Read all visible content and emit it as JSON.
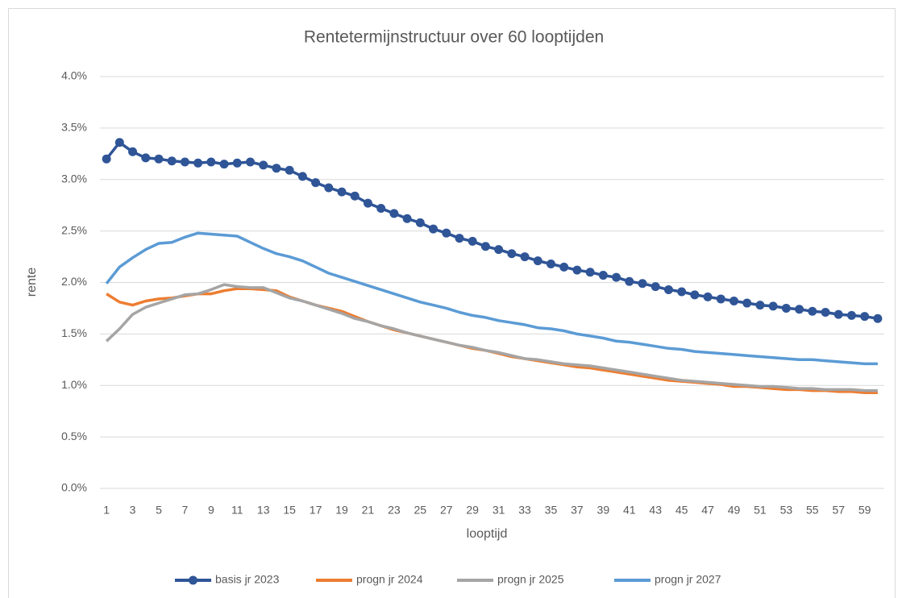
{
  "chart_data": {
    "type": "line",
    "title": "Rentetermijnstructuur over 60 looptijden",
    "x_label": "looptijd",
    "y_label": "rente",
    "x": [
      1,
      2,
      3,
      4,
      5,
      6,
      7,
      8,
      9,
      10,
      11,
      12,
      13,
      14,
      15,
      16,
      17,
      18,
      19,
      20,
      21,
      22,
      23,
      24,
      25,
      26,
      27,
      28,
      29,
      30,
      31,
      32,
      33,
      34,
      35,
      36,
      37,
      38,
      39,
      40,
      41,
      42,
      43,
      44,
      45,
      46,
      47,
      48,
      49,
      50,
      51,
      52,
      53,
      54,
      55,
      56,
      57,
      58,
      59,
      60
    ],
    "xlim": [
      0.5,
      60.5
    ],
    "xticks": [
      1,
      3,
      5,
      7,
      9,
      11,
      13,
      15,
      17,
      19,
      21,
      23,
      25,
      27,
      29,
      31,
      33,
      35,
      37,
      39,
      41,
      43,
      45,
      47,
      49,
      51,
      53,
      55,
      57,
      59
    ],
    "ylim": [
      0,
      4
    ],
    "yticks": [
      {
        "value": 0,
        "label": "0.0%"
      },
      {
        "value": 0.5,
        "label": "0.5%"
      },
      {
        "value": 1,
        "label": "1.0%"
      },
      {
        "value": 1.5,
        "label": "1.5%"
      },
      {
        "value": 2,
        "label": "2.0%"
      },
      {
        "value": 2.5,
        "label": "2.5%"
      },
      {
        "value": 3,
        "label": "3.0%"
      },
      {
        "value": 3.5,
        "label": "3.5%"
      },
      {
        "value": 4,
        "label": "4.0%"
      }
    ],
    "grid": true,
    "legend": "bottom",
    "series": [
      {
        "name": "basis jr 2023",
        "color": "#2f5597",
        "marker": true,
        "values": [
          3.2,
          3.36,
          3.27,
          3.21,
          3.2,
          3.18,
          3.17,
          3.16,
          3.17,
          3.15,
          3.16,
          3.17,
          3.14,
          3.11,
          3.09,
          3.03,
          2.97,
          2.92,
          2.88,
          2.84,
          2.77,
          2.72,
          2.67,
          2.62,
          2.58,
          2.52,
          2.48,
          2.43,
          2.4,
          2.35,
          2.32,
          2.28,
          2.25,
          2.21,
          2.18,
          2.15,
          2.12,
          2.1,
          2.07,
          2.05,
          2.01,
          1.99,
          1.96,
          1.93,
          1.91,
          1.88,
          1.86,
          1.84,
          1.82,
          1.8,
          1.78,
          1.77,
          1.75,
          1.74,
          1.72,
          1.71,
          1.69,
          1.68,
          1.67,
          1.65
        ]
      },
      {
        "name": "progn jr 2024",
        "color": "#ed7d31",
        "marker": false,
        "values": [
          1.89,
          1.81,
          1.78,
          1.82,
          1.84,
          1.85,
          1.87,
          1.89,
          1.89,
          1.92,
          1.94,
          1.94,
          1.93,
          1.92,
          1.86,
          1.82,
          1.78,
          1.75,
          1.72,
          1.67,
          1.62,
          1.58,
          1.54,
          1.51,
          1.48,
          1.45,
          1.42,
          1.39,
          1.36,
          1.34,
          1.31,
          1.28,
          1.26,
          1.24,
          1.22,
          1.2,
          1.18,
          1.17,
          1.15,
          1.13,
          1.11,
          1.09,
          1.07,
          1.05,
          1.04,
          1.03,
          1.02,
          1.01,
          0.99,
          0.99,
          0.98,
          0.97,
          0.96,
          0.96,
          0.95,
          0.95,
          0.94,
          0.94,
          0.93,
          0.93
        ]
      },
      {
        "name": "progn jr 2025",
        "color": "#a5a5a5",
        "marker": false,
        "values": [
          1.43,
          1.55,
          1.69,
          1.76,
          1.8,
          1.84,
          1.88,
          1.89,
          1.93,
          1.98,
          1.96,
          1.95,
          1.95,
          1.9,
          1.85,
          1.82,
          1.78,
          1.74,
          1.7,
          1.65,
          1.62,
          1.58,
          1.55,
          1.51,
          1.48,
          1.45,
          1.42,
          1.39,
          1.37,
          1.34,
          1.32,
          1.29,
          1.26,
          1.25,
          1.23,
          1.21,
          1.2,
          1.19,
          1.17,
          1.15,
          1.13,
          1.11,
          1.09,
          1.07,
          1.05,
          1.04,
          1.03,
          1.02,
          1.01,
          1.0,
          0.99,
          0.99,
          0.98,
          0.97,
          0.97,
          0.96,
          0.96,
          0.96,
          0.95,
          0.95
        ]
      },
      {
        "name": "progn jr 2027",
        "color": "#5b9bd5",
        "marker": false,
        "values": [
          1.99,
          2.15,
          2.24,
          2.32,
          2.38,
          2.39,
          2.44,
          2.48,
          2.47,
          2.46,
          2.45,
          2.39,
          2.33,
          2.28,
          2.25,
          2.21,
          2.15,
          2.09,
          2.05,
          2.01,
          1.97,
          1.93,
          1.89,
          1.85,
          1.81,
          1.78,
          1.75,
          1.71,
          1.68,
          1.66,
          1.63,
          1.61,
          1.59,
          1.56,
          1.55,
          1.53,
          1.5,
          1.48,
          1.46,
          1.43,
          1.42,
          1.4,
          1.38,
          1.36,
          1.35,
          1.33,
          1.32,
          1.31,
          1.3,
          1.29,
          1.28,
          1.27,
          1.26,
          1.25,
          1.25,
          1.24,
          1.23,
          1.22,
          1.21,
          1.21
        ]
      }
    ]
  }
}
